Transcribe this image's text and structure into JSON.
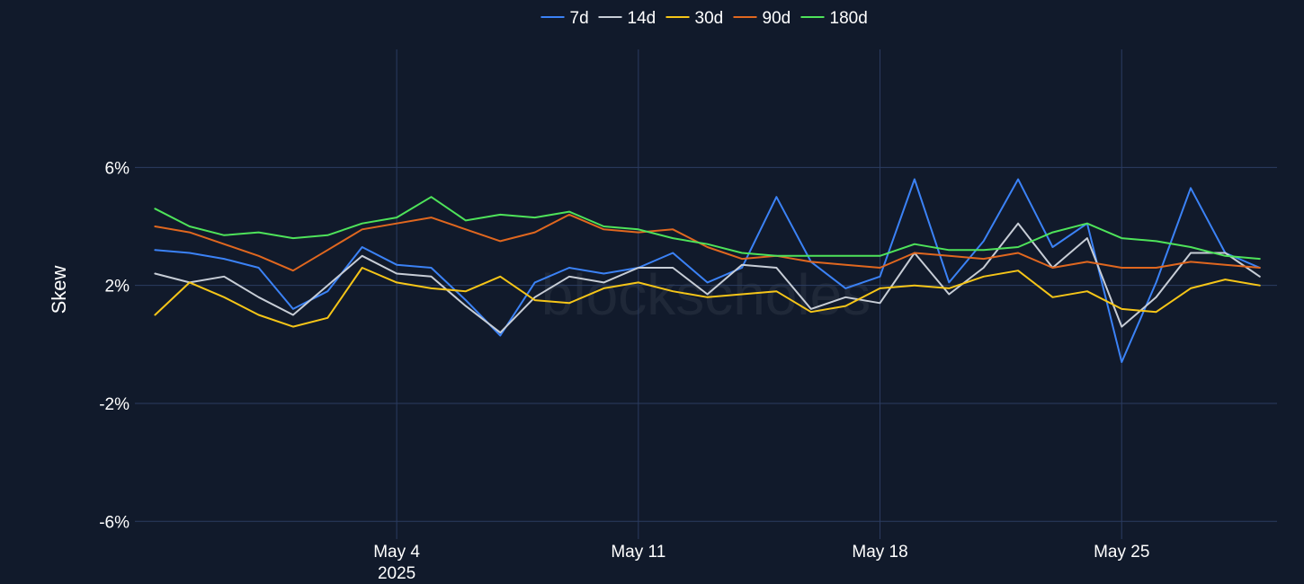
{
  "chart_data": {
    "type": "line",
    "ylabel": "Skew",
    "y_ticks": [
      {
        "value": 6,
        "label": "6%"
      },
      {
        "value": 2,
        "label": "2%"
      },
      {
        "value": -2,
        "label": "-2%"
      },
      {
        "value": -6,
        "label": "-6%"
      }
    ],
    "ylim": [
      -6.6,
      10.0
    ],
    "xlim": [
      "2025-04-26T10:00",
      "2025-05-29T12:00"
    ],
    "x_ticks": [
      {
        "date": "2025-05-04",
        "label": "May 4",
        "sublabel": "2025"
      },
      {
        "date": "2025-05-11",
        "label": "May 11",
        "sublabel": ""
      },
      {
        "date": "2025-05-18",
        "label": "May 18",
        "sublabel": ""
      },
      {
        "date": "2025-05-25",
        "label": "May 25",
        "sublabel": ""
      }
    ],
    "grid": true,
    "legend_position": "top-center",
    "watermark": "blockscholes",
    "series": [
      {
        "name": "7d",
        "color": "#3b82f6",
        "points": [
          [
            "2025-04-27",
            3.2
          ],
          [
            "2025-04-28",
            3.1
          ],
          [
            "2025-04-29",
            2.9
          ],
          [
            "2025-04-30",
            2.6
          ],
          [
            "2025-05-01",
            1.2
          ],
          [
            "2025-05-02",
            1.8
          ],
          [
            "2025-05-03",
            3.3
          ],
          [
            "2025-05-04",
            2.7
          ],
          [
            "2025-05-05",
            2.6
          ],
          [
            "2025-05-06",
            1.5
          ],
          [
            "2025-05-07",
            0.3
          ],
          [
            "2025-05-08",
            2.1
          ],
          [
            "2025-05-09",
            2.6
          ],
          [
            "2025-05-10",
            2.4
          ],
          [
            "2025-05-11",
            2.6
          ],
          [
            "2025-05-12",
            3.1
          ],
          [
            "2025-05-13",
            2.1
          ],
          [
            "2025-05-14",
            2.6
          ],
          [
            "2025-05-15",
            5.0
          ],
          [
            "2025-05-16",
            2.8
          ],
          [
            "2025-05-17",
            1.9
          ],
          [
            "2025-05-18",
            2.3
          ],
          [
            "2025-05-19",
            5.6
          ],
          [
            "2025-05-20",
            2.1
          ],
          [
            "2025-05-21",
            3.5
          ],
          [
            "2025-05-22",
            5.6
          ],
          [
            "2025-05-23",
            3.3
          ],
          [
            "2025-05-24",
            4.1
          ],
          [
            "2025-05-25",
            -0.6
          ],
          [
            "2025-05-26",
            2.1
          ],
          [
            "2025-05-27",
            5.3
          ],
          [
            "2025-05-28",
            3.1
          ],
          [
            "2025-05-29",
            2.6
          ]
        ]
      },
      {
        "name": "14d",
        "color": "#c7cdd6",
        "points": [
          [
            "2025-04-27",
            2.4
          ],
          [
            "2025-04-28",
            2.1
          ],
          [
            "2025-04-29",
            2.3
          ],
          [
            "2025-04-30",
            1.6
          ],
          [
            "2025-05-01",
            1.0
          ],
          [
            "2025-05-02",
            2.0
          ],
          [
            "2025-05-03",
            3.0
          ],
          [
            "2025-05-04",
            2.4
          ],
          [
            "2025-05-05",
            2.3
          ],
          [
            "2025-05-06",
            1.3
          ],
          [
            "2025-05-07",
            0.4
          ],
          [
            "2025-05-08",
            1.6
          ],
          [
            "2025-05-09",
            2.3
          ],
          [
            "2025-05-10",
            2.1
          ],
          [
            "2025-05-11",
            2.6
          ],
          [
            "2025-05-12",
            2.6
          ],
          [
            "2025-05-13",
            1.7
          ],
          [
            "2025-05-14",
            2.7
          ],
          [
            "2025-05-15",
            2.6
          ],
          [
            "2025-05-16",
            1.2
          ],
          [
            "2025-05-17",
            1.6
          ],
          [
            "2025-05-18",
            1.4
          ],
          [
            "2025-05-19",
            3.1
          ],
          [
            "2025-05-20",
            1.7
          ],
          [
            "2025-05-21",
            2.6
          ],
          [
            "2025-05-22",
            4.1
          ],
          [
            "2025-05-23",
            2.6
          ],
          [
            "2025-05-24",
            3.6
          ],
          [
            "2025-05-25",
            0.6
          ],
          [
            "2025-05-26",
            1.6
          ],
          [
            "2025-05-27",
            3.1
          ],
          [
            "2025-05-28",
            3.1
          ],
          [
            "2025-05-29",
            2.3
          ]
        ]
      },
      {
        "name": "30d",
        "color": "#f5c518",
        "points": [
          [
            "2025-04-27",
            1.0
          ],
          [
            "2025-04-28",
            2.1
          ],
          [
            "2025-04-29",
            1.6
          ],
          [
            "2025-04-30",
            1.0
          ],
          [
            "2025-05-01",
            0.6
          ],
          [
            "2025-05-02",
            0.9
          ],
          [
            "2025-05-03",
            2.6
          ],
          [
            "2025-05-04",
            2.1
          ],
          [
            "2025-05-05",
            1.9
          ],
          [
            "2025-05-06",
            1.8
          ],
          [
            "2025-05-07",
            2.3
          ],
          [
            "2025-05-08",
            1.5
          ],
          [
            "2025-05-09",
            1.4
          ],
          [
            "2025-05-10",
            1.9
          ],
          [
            "2025-05-11",
            2.1
          ],
          [
            "2025-05-12",
            1.8
          ],
          [
            "2025-05-13",
            1.6
          ],
          [
            "2025-05-14",
            1.7
          ],
          [
            "2025-05-15",
            1.8
          ],
          [
            "2025-05-16",
            1.1
          ],
          [
            "2025-05-17",
            1.3
          ],
          [
            "2025-05-18",
            1.9
          ],
          [
            "2025-05-19",
            2.0
          ],
          [
            "2025-05-20",
            1.9
          ],
          [
            "2025-05-21",
            2.3
          ],
          [
            "2025-05-22",
            2.5
          ],
          [
            "2025-05-23",
            1.6
          ],
          [
            "2025-05-24",
            1.8
          ],
          [
            "2025-05-25",
            1.2
          ],
          [
            "2025-05-26",
            1.1
          ],
          [
            "2025-05-27",
            1.9
          ],
          [
            "2025-05-28",
            2.2
          ],
          [
            "2025-05-29",
            2.0
          ]
        ]
      },
      {
        "name": "90d",
        "color": "#e0671f",
        "points": [
          [
            "2025-04-27",
            4.0
          ],
          [
            "2025-04-28",
            3.8
          ],
          [
            "2025-04-29",
            3.4
          ],
          [
            "2025-04-30",
            3.0
          ],
          [
            "2025-05-01",
            2.5
          ],
          [
            "2025-05-02",
            3.2
          ],
          [
            "2025-05-03",
            3.9
          ],
          [
            "2025-05-04",
            4.1
          ],
          [
            "2025-05-05",
            4.3
          ],
          [
            "2025-05-06",
            3.9
          ],
          [
            "2025-05-07",
            3.5
          ],
          [
            "2025-05-08",
            3.8
          ],
          [
            "2025-05-09",
            4.4
          ],
          [
            "2025-05-10",
            3.9
          ],
          [
            "2025-05-11",
            3.8
          ],
          [
            "2025-05-12",
            3.9
          ],
          [
            "2025-05-13",
            3.3
          ],
          [
            "2025-05-14",
            2.9
          ],
          [
            "2025-05-15",
            3.0
          ],
          [
            "2025-05-16",
            2.8
          ],
          [
            "2025-05-17",
            2.7
          ],
          [
            "2025-05-18",
            2.6
          ],
          [
            "2025-05-19",
            3.1
          ],
          [
            "2025-05-20",
            3.0
          ],
          [
            "2025-05-21",
            2.9
          ],
          [
            "2025-05-22",
            3.1
          ],
          [
            "2025-05-23",
            2.6
          ],
          [
            "2025-05-24",
            2.8
          ],
          [
            "2025-05-25",
            2.6
          ],
          [
            "2025-05-26",
            2.6
          ],
          [
            "2025-05-27",
            2.8
          ],
          [
            "2025-05-28",
            2.7
          ],
          [
            "2025-05-29",
            2.6
          ]
        ]
      },
      {
        "name": "180d",
        "color": "#4ee35a",
        "points": [
          [
            "2025-04-27",
            4.6
          ],
          [
            "2025-04-28",
            4.0
          ],
          [
            "2025-04-29",
            3.7
          ],
          [
            "2025-04-30",
            3.8
          ],
          [
            "2025-05-01",
            3.6
          ],
          [
            "2025-05-02",
            3.7
          ],
          [
            "2025-05-03",
            4.1
          ],
          [
            "2025-05-04",
            4.3
          ],
          [
            "2025-05-05",
            5.0
          ],
          [
            "2025-05-06",
            4.2
          ],
          [
            "2025-05-07",
            4.4
          ],
          [
            "2025-05-08",
            4.3
          ],
          [
            "2025-05-09",
            4.5
          ],
          [
            "2025-05-10",
            4.0
          ],
          [
            "2025-05-11",
            3.9
          ],
          [
            "2025-05-12",
            3.6
          ],
          [
            "2025-05-13",
            3.4
          ],
          [
            "2025-05-14",
            3.1
          ],
          [
            "2025-05-15",
            3.0
          ],
          [
            "2025-05-16",
            3.0
          ],
          [
            "2025-05-17",
            3.0
          ],
          [
            "2025-05-18",
            3.0
          ],
          [
            "2025-05-19",
            3.4
          ],
          [
            "2025-05-20",
            3.2
          ],
          [
            "2025-05-21",
            3.2
          ],
          [
            "2025-05-22",
            3.3
          ],
          [
            "2025-05-23",
            3.8
          ],
          [
            "2025-05-24",
            4.1
          ],
          [
            "2025-05-25",
            3.6
          ],
          [
            "2025-05-26",
            3.5
          ],
          [
            "2025-05-27",
            3.3
          ],
          [
            "2025-05-28",
            3.0
          ],
          [
            "2025-05-29",
            2.9
          ]
        ]
      }
    ]
  }
}
